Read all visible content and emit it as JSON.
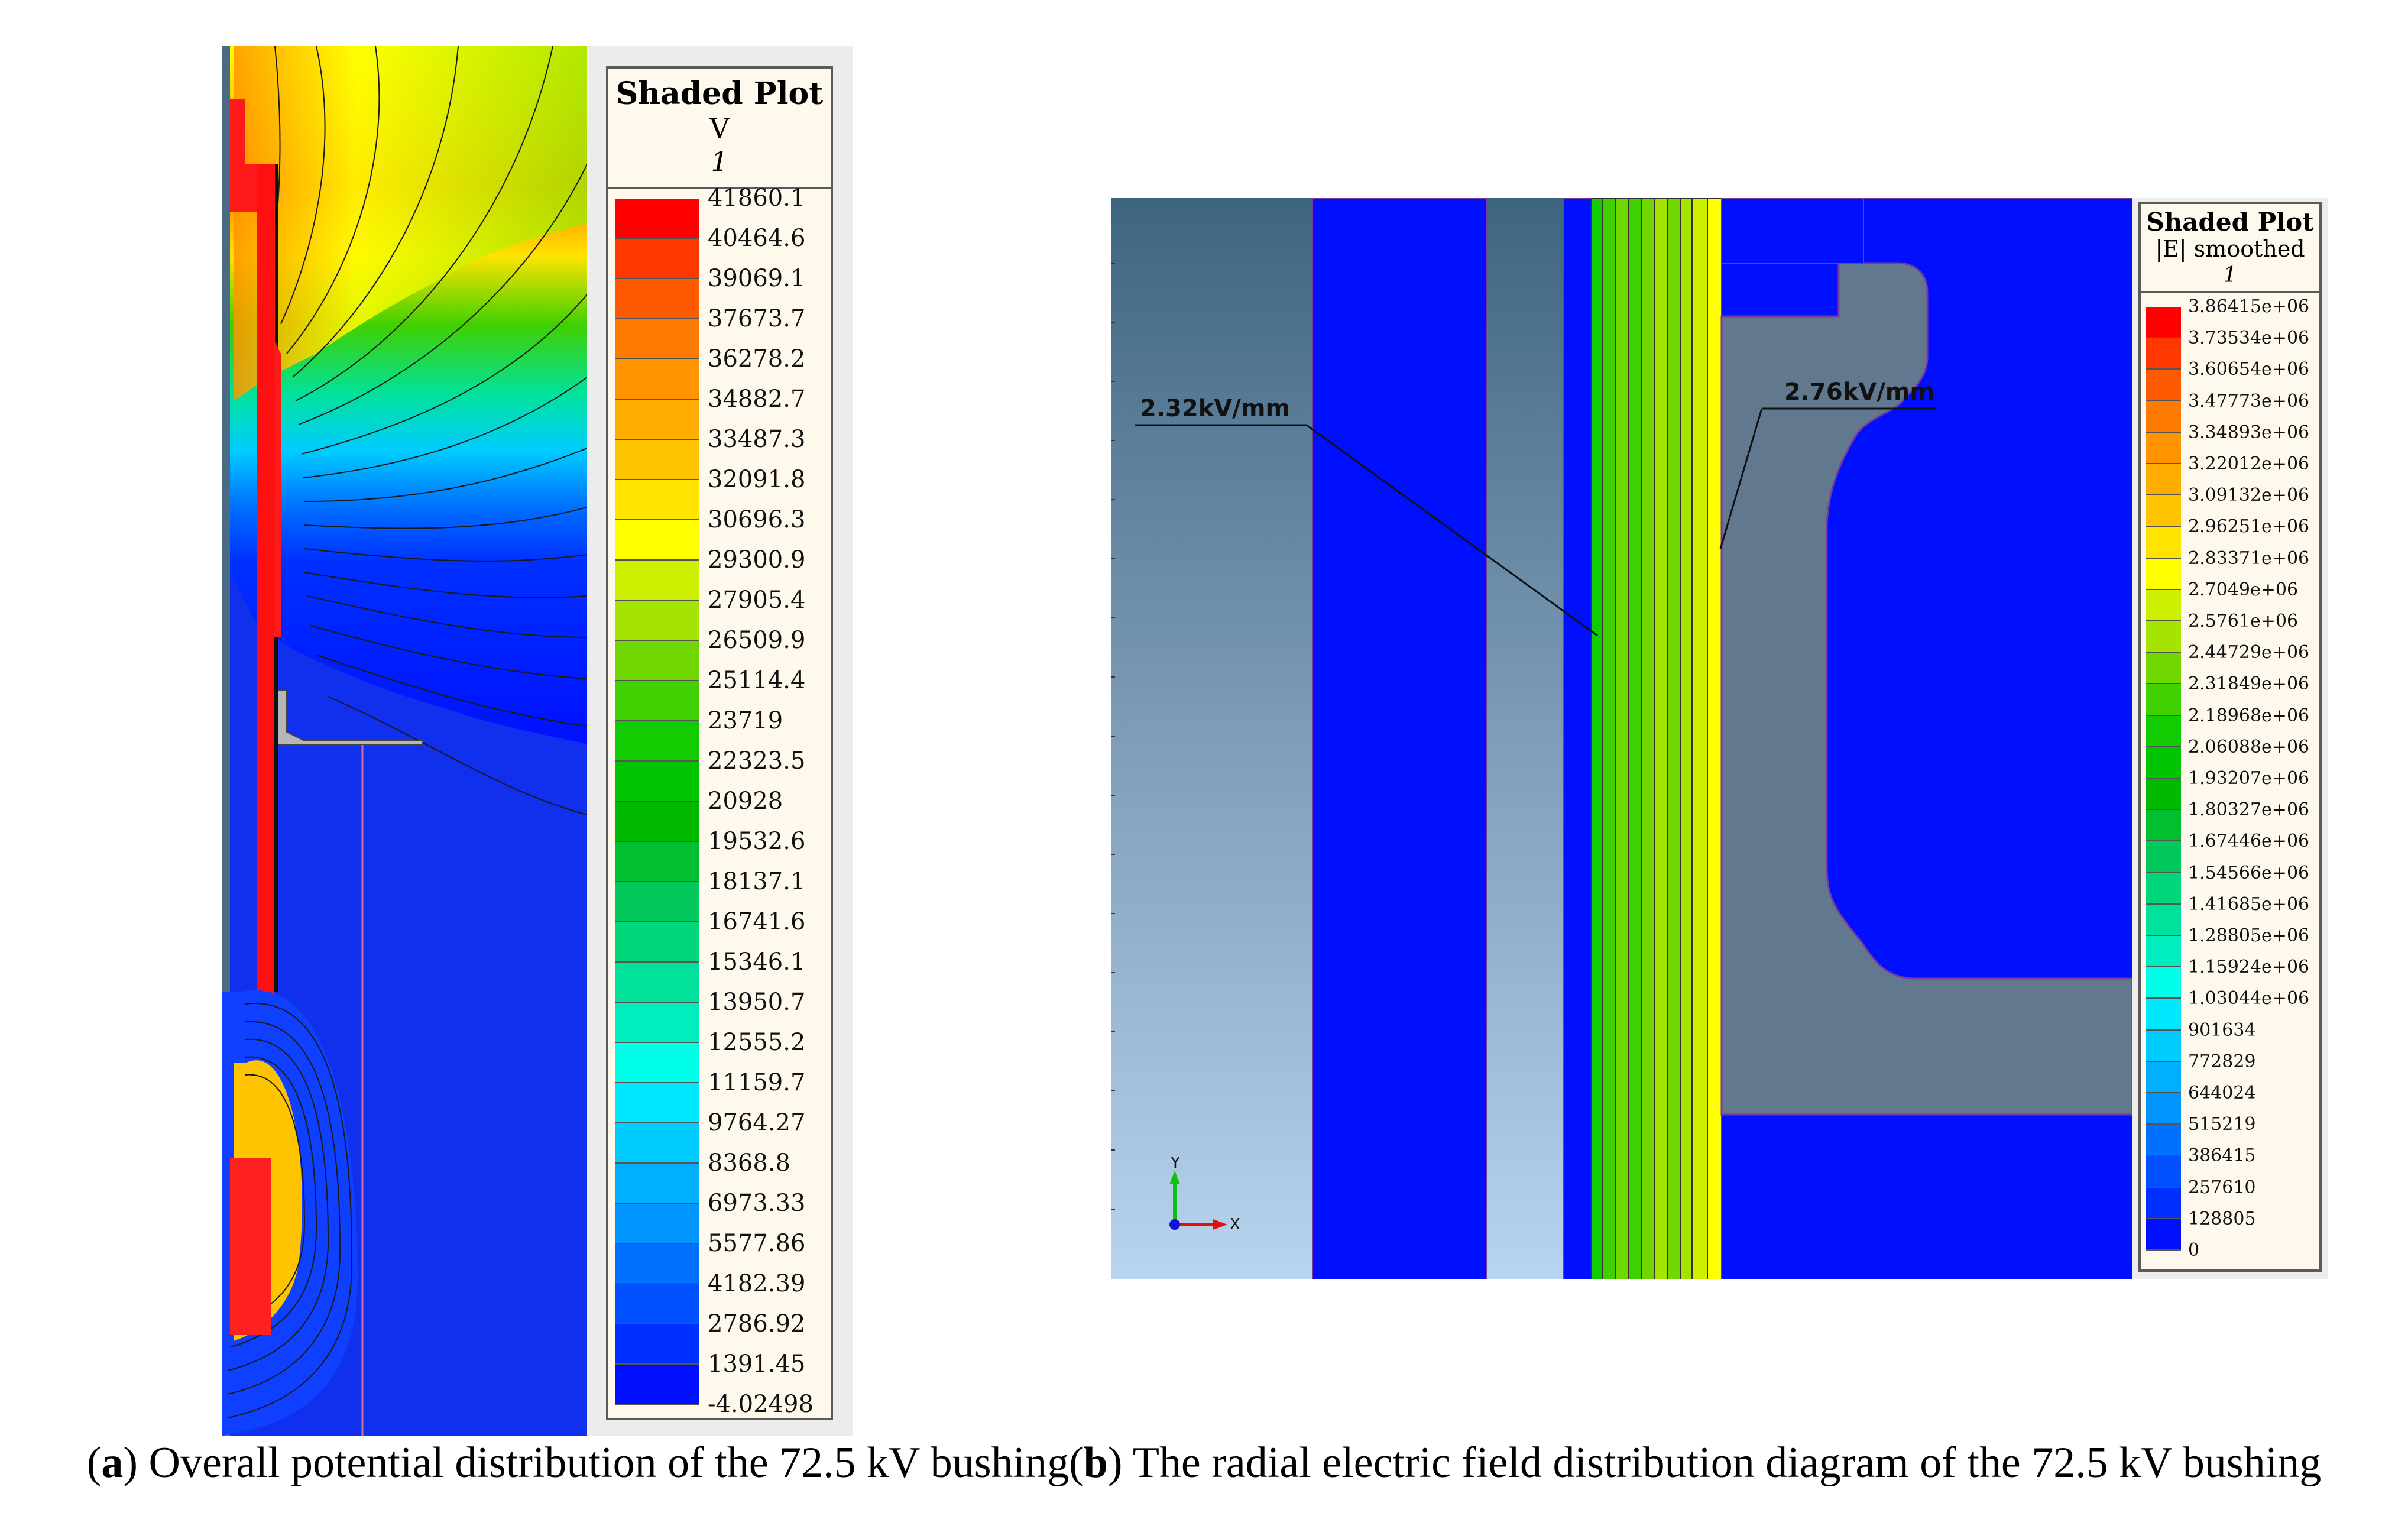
{
  "panel_a": {
    "legend": {
      "title": "Shaded Plot",
      "quantity": "V",
      "case": "1",
      "values": [
        "41860.1",
        "40464.6",
        "39069.1",
        "37673.7",
        "36278.2",
        "34882.7",
        "33487.3",
        "32091.8",
        "30696.3",
        "29300.9",
        "27905.4",
        "26509.9",
        "25114.4",
        "23719",
        "22323.5",
        "20928",
        "19532.6",
        "18137.1",
        "16741.6",
        "15346.1",
        "13950.7",
        "12555.2",
        "11159.7",
        "9764.27",
        "8368.8",
        "6973.33",
        "5577.86",
        "4182.39",
        "2786.92",
        "1391.45",
        "-4.02498"
      ],
      "colors": [
        "#ff0000",
        "#ff3800",
        "#ff5a00",
        "#ff7a00",
        "#ff9400",
        "#ffac00",
        "#ffc400",
        "#ffe400",
        "#ffff00",
        "#ccf000",
        "#a4e400",
        "#70d800",
        "#40d000",
        "#10cc00",
        "#00c400",
        "#00b800",
        "#00c030",
        "#00c85a",
        "#00d67a",
        "#00e29c",
        "#00eebe",
        "#00ffe8",
        "#00e8ff",
        "#00ccff",
        "#00b0ff",
        "#0094ff",
        "#0070ff",
        "#0050ff",
        "#0030ff",
        "#0010ff"
      ]
    }
  },
  "panel_b": {
    "legend": {
      "title": "Shaded Plot",
      "quantity": "|E| smoothed",
      "case": "1",
      "values": [
        "3.86415e+06",
        "3.73534e+06",
        "3.60654e+06",
        "3.47773e+06",
        "3.34893e+06",
        "3.22012e+06",
        "3.09132e+06",
        "2.96251e+06",
        "2.83371e+06",
        "2.7049e+06",
        "2.5761e+06",
        "2.44729e+06",
        "2.31849e+06",
        "2.18968e+06",
        "2.06088e+06",
        "1.93207e+06",
        "1.80327e+06",
        "1.67446e+06",
        "1.54566e+06",
        "1.41685e+06",
        "1.28805e+06",
        "1.15924e+06",
        "1.03044e+06",
        "901634",
        "772829",
        "644024",
        "515219",
        "386415",
        "257610",
        "128805",
        "0"
      ],
      "colors": [
        "#ff0000",
        "#ff3800",
        "#ff5a00",
        "#ff7a00",
        "#ff9400",
        "#ffac00",
        "#ffc400",
        "#ffe400",
        "#ffff00",
        "#ccf000",
        "#a4e400",
        "#70d800",
        "#40d000",
        "#10cc00",
        "#00c400",
        "#00b800",
        "#00c030",
        "#00c85a",
        "#00d67a",
        "#00e29c",
        "#00eebe",
        "#00ffe8",
        "#00e8ff",
        "#00ccff",
        "#00b0ff",
        "#0094ff",
        "#0070ff",
        "#0050ff",
        "#0030ff",
        "#0010ff"
      ]
    },
    "annotation_left": "2.32kV/mm",
    "annotation_right": "2.76kV/mm",
    "axis_y": "Y",
    "axis_x": "X"
  },
  "caption": {
    "a_letter": "a",
    "a_text": ") Overall potential distribution of the 72.5 kV bushing(",
    "b_letter": "b",
    "b_text": ") The radial electric field distribution diagram of the 72.5 kV bushing"
  }
}
